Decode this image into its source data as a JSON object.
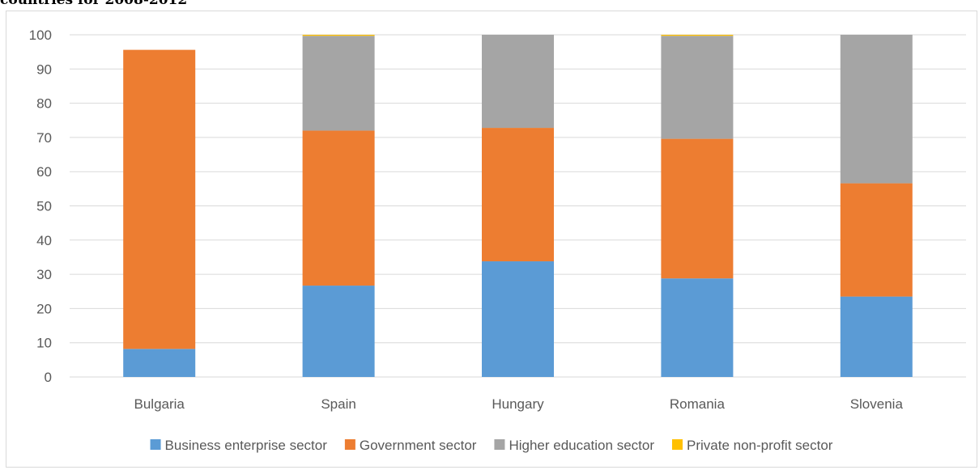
{
  "heading": "countries for 2008-2012",
  "chart_data": {
    "type": "bar",
    "stacked": true,
    "categories": [
      "Bulgaria",
      "Spain",
      "Hungary",
      "Romania",
      "Slovenia"
    ],
    "series": [
      {
        "name": "Business enterprise sector",
        "color": "#5b9bd5",
        "values": [
          8.2,
          26.7,
          33.8,
          28.8,
          23.5
        ]
      },
      {
        "name": "Government sector",
        "color": "#ed7d31",
        "values": [
          87.4,
          45.3,
          39.0,
          40.8,
          33.1
        ]
      },
      {
        "name": "Higher education sector",
        "color": "#a5a5a5",
        "values": [
          0.0,
          27.7,
          27.2,
          30.1,
          43.4
        ]
      },
      {
        "name": "Private non-profit sector",
        "color": "#ffc000",
        "values": [
          0.0,
          0.3,
          0.0,
          0.3,
          0.0
        ]
      }
    ],
    "ylim": [
      0,
      100
    ],
    "yticks": [
      0,
      10,
      20,
      30,
      40,
      50,
      60,
      70,
      80,
      90,
      100
    ],
    "grid": true,
    "legend": "bottom",
    "xlabel": "",
    "ylabel": ""
  }
}
